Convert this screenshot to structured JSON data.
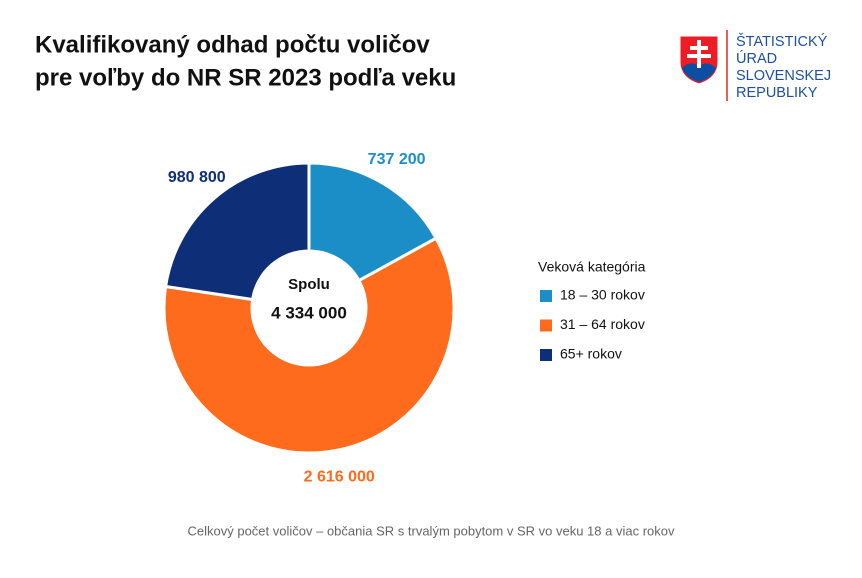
{
  "chart_data": {
    "type": "donut",
    "title": [
      "Kvalifikovaný odhad počtu voličov",
      "pre voľby do NR SR 2023 podľa veku"
    ],
    "categories": [
      "18 – 30 rokov",
      "31 – 64 rokov",
      "65+ rokov"
    ],
    "values": [
      737200,
      2616000,
      980800
    ],
    "value_labels": [
      "737 200",
      "2 616 000",
      "980 800"
    ],
    "colors": [
      "#1b8ec8",
      "#fe6b1c",
      "#0e2f78"
    ],
    "legend_title": "Veková kategória",
    "center_label": "Spolu",
    "center_value": "4 334 000",
    "footnote": "Celkový počet voličov – občania SR s trvalým pobytom v SR vo veku 18 a viac rokov"
  },
  "logo": {
    "lines": [
      "ŠTATISTICKÝ",
      "ÚRAD",
      "SLOVENSKEJ",
      "REPUBLIKY"
    ]
  }
}
